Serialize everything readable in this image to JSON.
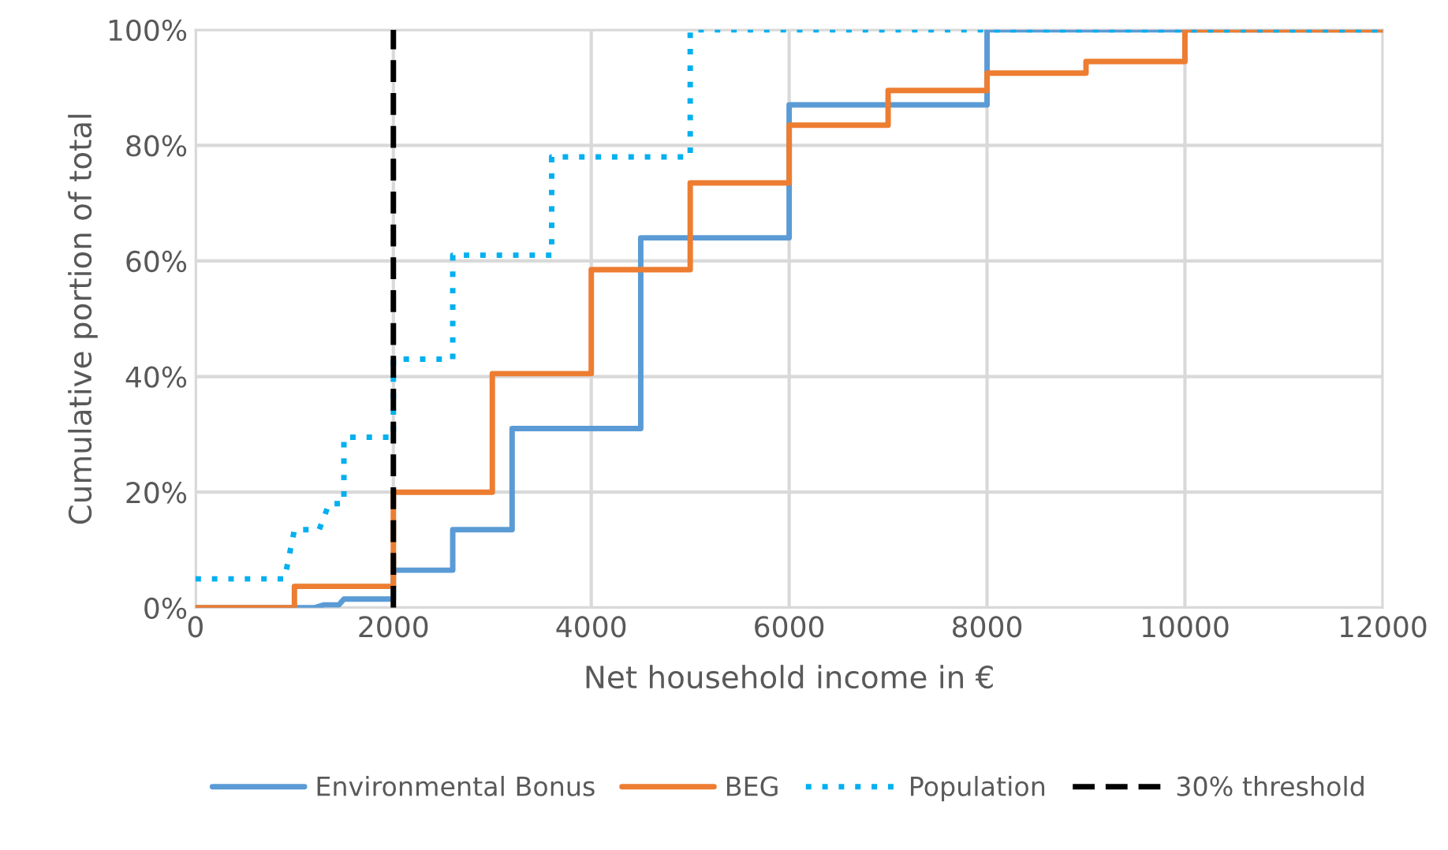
{
  "chart_data": {
    "type": "line",
    "xlabel": "Net household income in €",
    "ylabel": "Cumulative portion of total",
    "xlim": [
      0,
      12000
    ],
    "xticks": [
      0,
      2000,
      4000,
      6000,
      8000,
      10000,
      12000
    ],
    "ylim": [
      0,
      100
    ],
    "yticks": [
      {
        "value": 0,
        "label": "0%"
      },
      {
        "value": 20,
        "label": "20%"
      },
      {
        "value": 40,
        "label": "40%"
      },
      {
        "value": 60,
        "label": "60%"
      },
      {
        "value": 80,
        "label": "80%"
      },
      {
        "value": 100,
        "label": "100%"
      }
    ],
    "grid": true,
    "legend": "bottom",
    "marker": "none",
    "series": [
      {
        "name": "Environmental Bonus",
        "color": "#5b9bd5",
        "line_style": "solid",
        "x": [
          0,
          1200,
          1300,
          1450,
          1500,
          2000,
          2000,
          2600,
          2600,
          3200,
          3200,
          4500,
          4500,
          6000,
          6000,
          8000,
          8000,
          12000
        ],
        "values": [
          0,
          0,
          0.5,
          0.5,
          1.5,
          1.5,
          6.5,
          6.5,
          13.5,
          13.5,
          31,
          31,
          64,
          64,
          87,
          87,
          100,
          100
        ]
      },
      {
        "name": "BEG",
        "color": "#ed7d31",
        "line_style": "solid",
        "x": [
          0,
          1000,
          1000,
          2000,
          2000,
          3000,
          3000,
          4000,
          4000,
          5000,
          5000,
          6000,
          6000,
          7000,
          7000,
          8000,
          8000,
          9000,
          9000,
          10000,
          10000,
          12000
        ],
        "values": [
          0,
          0,
          3.7,
          3.7,
          20,
          20,
          40.5,
          40.5,
          58.5,
          58.5,
          73.5,
          73.5,
          83.5,
          83.5,
          89.5,
          89.5,
          92.5,
          92.5,
          94.5,
          94.5,
          100,
          100
        ]
      },
      {
        "name": "Population",
        "color": "#00b0f0",
        "line_style": "dotted",
        "x": [
          0,
          900,
          1000,
          1250,
          1350,
          1500,
          1500,
          2000,
          2000,
          2600,
          2600,
          3600,
          3600,
          5000,
          5000,
          12000
        ],
        "values": [
          5,
          5,
          13.5,
          13.5,
          18,
          18,
          29.5,
          29.5,
          43,
          43,
          61,
          61,
          78,
          78,
          100,
          100
        ]
      }
    ],
    "ref_lines": [
      {
        "axis": "x",
        "value": 2000,
        "label": "30% threshold",
        "color": "#000000",
        "line_style": "dashed"
      }
    ]
  }
}
